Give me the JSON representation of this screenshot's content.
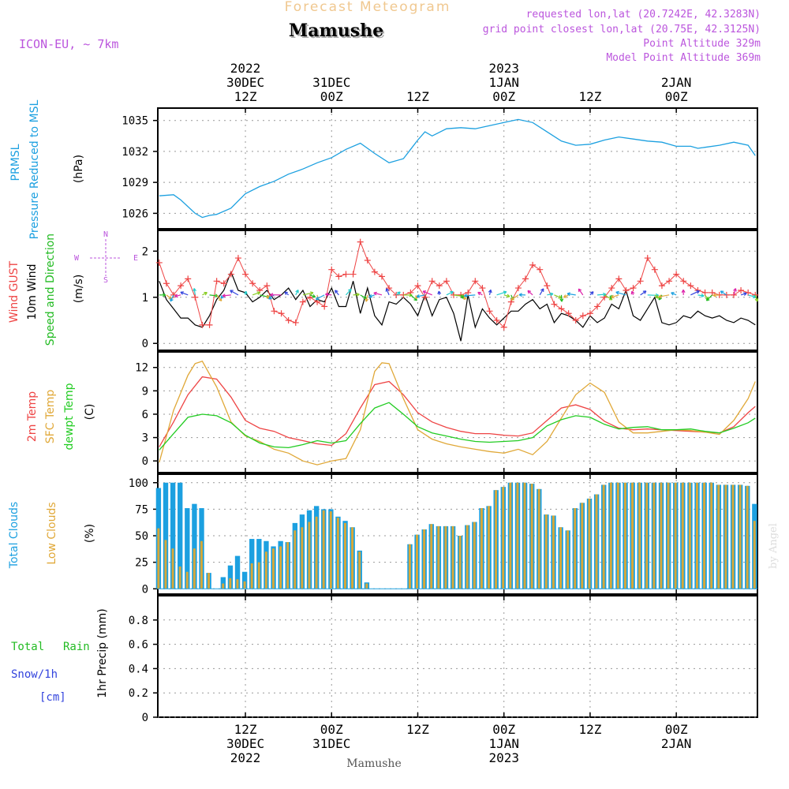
{
  "header": {
    "supertitle": "Forecast Meteogram",
    "title": "Mamushe",
    "model": "ICON-EU, ~ 7km",
    "requested": "requested lon,lat (20.7242E, 42.3283N)",
    "grid": "grid point closest lon,lat (20.75E, 42.3125N)",
    "point_alt": "Point Altitude 329m",
    "model_alt": "Model Point Altitude 369m",
    "footer": "Mamushe",
    "watermark": "by Angel"
  },
  "colors": {
    "pressure": "#1ca0e0",
    "gust": "#ee4444",
    "wind": "#000000",
    "green": "#22bb22",
    "temp2m": "#ee4444",
    "sfc": "#e0a838",
    "dew": "#22cc22",
    "total_clouds": "#1ca0e0",
    "low_clouds": "#d8a838",
    "rain": "#22bb22",
    "snow": "#3344dd",
    "purple": "#bb55dd"
  },
  "time_axis": {
    "top_labels": [
      {
        "h": 12,
        "lines": [
          "2022",
          "30DEC",
          "12Z"
        ]
      },
      {
        "h": 24,
        "lines": [
          "31DEC",
          "00Z"
        ]
      },
      {
        "h": 36,
        "lines": [
          "12Z"
        ]
      },
      {
        "h": 48,
        "lines": [
          "2023",
          "1JAN",
          "00Z"
        ]
      },
      {
        "h": 60,
        "lines": [
          "12Z"
        ]
      },
      {
        "h": 72,
        "lines": [
          "2JAN",
          "00Z"
        ]
      }
    ],
    "bottom_labels": [
      {
        "h": 12,
        "lines": [
          "12Z",
          "30DEC",
          "2022"
        ]
      },
      {
        "h": 24,
        "lines": [
          "00Z",
          "31DEC"
        ]
      },
      {
        "h": 36,
        "lines": [
          "12Z"
        ]
      },
      {
        "h": 48,
        "lines": [
          "00Z",
          "1JAN",
          "2023"
        ]
      },
      {
        "h": 60,
        "lines": [
          "12Z"
        ]
      },
      {
        "h": 72,
        "lines": [
          "00Z",
          "2JAN"
        ]
      }
    ]
  },
  "panels": {
    "pressure": {
      "labels": [
        "PRMSL",
        "Pressure Reduced to MSL"
      ],
      "unit": "(hPa)"
    },
    "wind": {
      "labels": [
        "Wind GUST",
        "10m Wind",
        "Speed and Direction"
      ],
      "unit": "(m/s)",
      "compass": {
        "n": "N",
        "e": "E",
        "s": "S",
        "w": "W"
      }
    },
    "temp": {
      "labels": [
        "2m Temp",
        "SFC Temp",
        "dewpt Temp"
      ],
      "unit": "(C)"
    },
    "clouds": {
      "labels": [
        "Total Clouds",
        "Low Clouds"
      ],
      "unit": "(%)"
    },
    "precip": {
      "labels": [
        "Total",
        "Rain",
        "Snow/1h",
        "[cm]"
      ],
      "unit": "1hr Precip (mm)"
    }
  },
  "chart_data": [
    {
      "type": "line",
      "title": "PRMSL Pressure Reduced to MSL",
      "ylabel": "hPa",
      "ylim": [
        1024.5,
        1036.2
      ],
      "yticks": [
        1026,
        1029,
        1032,
        1035
      ],
      "series": [
        {
          "name": "PRMSL",
          "x": [
            0,
            2,
            3,
            5,
            6,
            7,
            8,
            10,
            12,
            14,
            16,
            18,
            20,
            22,
            24,
            26,
            28,
            30,
            32,
            34,
            35,
            36,
            37,
            38,
            40,
            42,
            44,
            46,
            48,
            50,
            52,
            54,
            56,
            58,
            60,
            62,
            64,
            66,
            68,
            70,
            72,
            74,
            75,
            76,
            78,
            80,
            82,
            83
          ],
          "values": [
            1027.7,
            1027.8,
            1027.3,
            1026.0,
            1025.6,
            1025.8,
            1025.9,
            1026.5,
            1027.9,
            1028.6,
            1029.1,
            1029.8,
            1030.3,
            1030.9,
            1031.4,
            1032.2,
            1032.8,
            1031.8,
            1030.9,
            1031.3,
            1032.2,
            1033.1,
            1033.9,
            1033.5,
            1034.2,
            1034.3,
            1034.2,
            1034.5,
            1034.8,
            1035.1,
            1034.8,
            1033.9,
            1033.0,
            1032.6,
            1032.7,
            1033.1,
            1033.4,
            1033.2,
            1033.0,
            1032.9,
            1032.5,
            1032.5,
            1032.3,
            1032.4,
            1032.6,
            1032.9,
            1032.6,
            1031.6
          ]
        }
      ]
    },
    {
      "type": "line",
      "title": "Wind GUST / 10m Wind Speed and Direction",
      "ylabel": "m/s",
      "ylim": [
        -0.15,
        2.45
      ],
      "yticks": [
        0,
        1,
        2
      ],
      "series": [
        {
          "name": "Wind GUST",
          "x": [
            0,
            1,
            2,
            3,
            4,
            5,
            6,
            7,
            8,
            9,
            10,
            11,
            12,
            13,
            14,
            15,
            16,
            17,
            18,
            19,
            20,
            21,
            22,
            23,
            24,
            25,
            26,
            27,
            28,
            29,
            30,
            31,
            32,
            33,
            34,
            35,
            36,
            37,
            38,
            39,
            40,
            41,
            42,
            43,
            44,
            45,
            46,
            47,
            48,
            49,
            50,
            51,
            52,
            53,
            54,
            55,
            56,
            57,
            58,
            59,
            60,
            61,
            62,
            63,
            64,
            65,
            66,
            67,
            68,
            69,
            70,
            71,
            72,
            73,
            74,
            75,
            76,
            77,
            78,
            79,
            80,
            81,
            82,
            83
          ],
          "values": [
            1.75,
            1.3,
            1.05,
            1.25,
            1.4,
            1.0,
            0.4,
            0.4,
            1.35,
            1.3,
            1.5,
            1.85,
            1.5,
            1.3,
            1.15,
            1.25,
            0.7,
            0.65,
            0.5,
            0.45,
            0.9,
            1.0,
            0.9,
            0.8,
            1.6,
            1.45,
            1.5,
            1.5,
            2.2,
            1.8,
            1.55,
            1.45,
            1.2,
            1.05,
            1.05,
            1.1,
            1.25,
            1.0,
            1.35,
            1.25,
            1.35,
            1.05,
            1.05,
            1.1,
            1.35,
            1.2,
            0.7,
            0.5,
            0.35,
            0.9,
            1.2,
            1.4,
            1.7,
            1.6,
            1.25,
            0.85,
            0.75,
            0.65,
            0.5,
            0.6,
            0.65,
            0.8,
            1.0,
            1.2,
            1.4,
            1.15,
            1.2,
            1.35,
            1.85,
            1.6,
            1.25,
            1.35,
            1.5,
            1.35,
            1.25,
            1.15,
            1.1,
            1.1,
            1.05,
            1.05,
            1.05,
            1.15,
            1.1,
            1.05
          ]
        },
        {
          "name": "10m Wind",
          "x": [
            0,
            1,
            2,
            3,
            4,
            5,
            6,
            7,
            8,
            9,
            10,
            11,
            12,
            13,
            14,
            15,
            16,
            17,
            18,
            19,
            20,
            21,
            22,
            23,
            24,
            25,
            26,
            27,
            28,
            29,
            30,
            31,
            32,
            33,
            34,
            35,
            36,
            37,
            38,
            39,
            40,
            41,
            42,
            43,
            44,
            45,
            46,
            47,
            48,
            49,
            50,
            51,
            52,
            53,
            54,
            55,
            56,
            57,
            58,
            59,
            60,
            61,
            62,
            63,
            64,
            65,
            66,
            67,
            68,
            69,
            70,
            71,
            72,
            73,
            74,
            75,
            76,
            77,
            78,
            79,
            80,
            81,
            82,
            83
          ],
          "values": [
            1.35,
            0.95,
            0.75,
            0.55,
            0.55,
            0.4,
            0.35,
            0.6,
            0.95,
            1.15,
            1.55,
            1.15,
            1.1,
            0.9,
            1.0,
            1.15,
            0.95,
            1.05,
            1.2,
            0.95,
            1.15,
            0.8,
            0.95,
            0.9,
            1.2,
            0.8,
            0.8,
            1.35,
            0.65,
            1.2,
            0.6,
            0.4,
            0.9,
            0.85,
            1.0,
            0.85,
            0.6,
            1.05,
            0.6,
            0.95,
            1.0,
            0.65,
            0.05,
            1.05,
            0.35,
            0.75,
            0.55,
            0.4,
            0.55,
            0.7,
            0.7,
            0.85,
            0.95,
            0.75,
            0.85,
            0.45,
            0.65,
            0.6,
            0.5,
            0.35,
            0.6,
            0.45,
            0.55,
            0.85,
            0.75,
            1.15,
            0.6,
            0.5,
            0.75,
            1.0,
            0.45,
            0.4,
            0.45,
            0.6,
            0.55,
            0.7,
            0.6,
            0.55,
            0.6,
            0.5,
            0.45,
            0.55,
            0.5,
            0.4
          ]
        }
      ]
    },
    {
      "type": "line",
      "title": "2m Temp / SFC Temp / dewpt Temp",
      "ylabel": "C",
      "ylim": [
        -1.5,
        14.0
      ],
      "yticks": [
        0,
        3,
        6,
        9,
        12
      ],
      "series": [
        {
          "name": "2m Temp",
          "x": [
            0,
            2,
            4,
            6,
            8,
            10,
            12,
            14,
            16,
            18,
            20,
            22,
            24,
            26,
            28,
            30,
            32,
            34,
            36,
            38,
            40,
            42,
            44,
            46,
            48,
            50,
            52,
            54,
            56,
            58,
            60,
            62,
            64,
            66,
            68,
            70,
            72,
            74,
            76,
            78,
            80,
            82,
            83
          ],
          "values": [
            1.8,
            5.0,
            8.5,
            10.8,
            10.5,
            8.2,
            5.2,
            4.2,
            3.8,
            3.0,
            2.6,
            2.2,
            2.0,
            3.5,
            6.8,
            9.8,
            10.2,
            8.5,
            6.2,
            5.0,
            4.3,
            3.8,
            3.5,
            3.5,
            3.3,
            3.2,
            3.6,
            5.2,
            6.8,
            7.2,
            6.6,
            5.1,
            4.2,
            4.0,
            4.1,
            4.0,
            3.9,
            3.8,
            3.7,
            3.6,
            4.4,
            6.2,
            7.0
          ]
        },
        {
          "name": "SFC Temp",
          "x": [
            0,
            2,
            4,
            5,
            6,
            8,
            10,
            12,
            14,
            16,
            18,
            20,
            22,
            24,
            26,
            28,
            30,
            31,
            32,
            34,
            36,
            38,
            40,
            42,
            44,
            46,
            48,
            50,
            52,
            54,
            56,
            58,
            60,
            62,
            64,
            66,
            68,
            70,
            72,
            74,
            76,
            78,
            80,
            82,
            83
          ],
          "values": [
            -0.2,
            6.5,
            11.0,
            12.5,
            12.8,
            9.5,
            5.0,
            3.2,
            2.5,
            1.5,
            1.0,
            0.0,
            -0.5,
            0.0,
            0.3,
            4.0,
            11.5,
            12.6,
            12.5,
            8.0,
            4.0,
            2.8,
            2.2,
            1.8,
            1.5,
            1.2,
            1.0,
            1.5,
            0.8,
            2.5,
            5.5,
            8.5,
            10.0,
            8.8,
            5.0,
            3.6,
            3.6,
            3.8,
            4.0,
            3.9,
            3.7,
            3.4,
            5.2,
            8.0,
            10.2
          ]
        },
        {
          "name": "dewpt Temp",
          "x": [
            0,
            2,
            4,
            6,
            8,
            10,
            12,
            14,
            16,
            18,
            20,
            22,
            24,
            26,
            28,
            30,
            32,
            34,
            36,
            38,
            40,
            42,
            44,
            46,
            48,
            50,
            52,
            54,
            56,
            58,
            60,
            62,
            64,
            66,
            68,
            70,
            72,
            74,
            76,
            78,
            80,
            82,
            83
          ],
          "values": [
            1.4,
            3.5,
            5.6,
            6.0,
            5.8,
            4.9,
            3.3,
            2.3,
            1.8,
            1.7,
            2.1,
            2.6,
            2.3,
            2.6,
            4.8,
            6.8,
            7.5,
            6.0,
            4.4,
            3.6,
            3.2,
            2.8,
            2.5,
            2.4,
            2.5,
            2.6,
            3.0,
            4.5,
            5.3,
            5.8,
            5.6,
            4.7,
            4.1,
            4.3,
            4.4,
            4.0,
            4.0,
            4.1,
            3.8,
            3.6,
            4.2,
            4.9,
            5.5
          ]
        }
      ]
    },
    {
      "type": "bar",
      "title": "Total Clouds / Low Clouds",
      "ylabel": "%",
      "ylim": [
        -5,
        108
      ],
      "yticks": [
        0,
        25,
        50,
        75,
        100
      ],
      "series": [
        {
          "name": "Total Clouds",
          "values": [
            95,
            100,
            100,
            100,
            76,
            80,
            76,
            15,
            0,
            11,
            22,
            31,
            16,
            47,
            47,
            45,
            40,
            45,
            44,
            62,
            70,
            74,
            78,
            75,
            75,
            68,
            64,
            58,
            36,
            6,
            0,
            0,
            0,
            0,
            0,
            42,
            51,
            56,
            61,
            59,
            59,
            59,
            50,
            60,
            63,
            76,
            78,
            93,
            96,
            100,
            100,
            100,
            99,
            94,
            70,
            69,
            58,
            55,
            76,
            81,
            85,
            89,
            98,
            100,
            100,
            100,
            100,
            100,
            100,
            100,
            100,
            100,
            100,
            100,
            100,
            100,
            100,
            100,
            98,
            98,
            98,
            98,
            97,
            80
          ]
        },
        {
          "name": "Low Clouds",
          "values": [
            57,
            46,
            38,
            21,
            16,
            38,
            45,
            15,
            0,
            5,
            10,
            9,
            7,
            24,
            25,
            35,
            38,
            40,
            44,
            55,
            58,
            63,
            68,
            74,
            73,
            67,
            62,
            58,
            35,
            5,
            0,
            0,
            0,
            0,
            0,
            42,
            51,
            56,
            61,
            59,
            59,
            59,
            50,
            60,
            63,
            76,
            78,
            93,
            96,
            100,
            100,
            100,
            99,
            94,
            70,
            69,
            58,
            55,
            76,
            81,
            85,
            89,
            98,
            100,
            100,
            100,
            100,
            100,
            100,
            100,
            100,
            100,
            100,
            100,
            100,
            100,
            100,
            100,
            98,
            98,
            98,
            98,
            97,
            64
          ]
        }
      ]
    },
    {
      "type": "line",
      "title": "1hr Precip",
      "ylabel": "1hr Precip (mm)",
      "ylim": [
        0,
        1.0
      ],
      "yticks": [
        0,
        0.2,
        0.4,
        0.6,
        0.8
      ],
      "series": [
        {
          "name": "Total Rain",
          "values": []
        },
        {
          "name": "Snow/1h",
          "values": []
        }
      ]
    }
  ]
}
